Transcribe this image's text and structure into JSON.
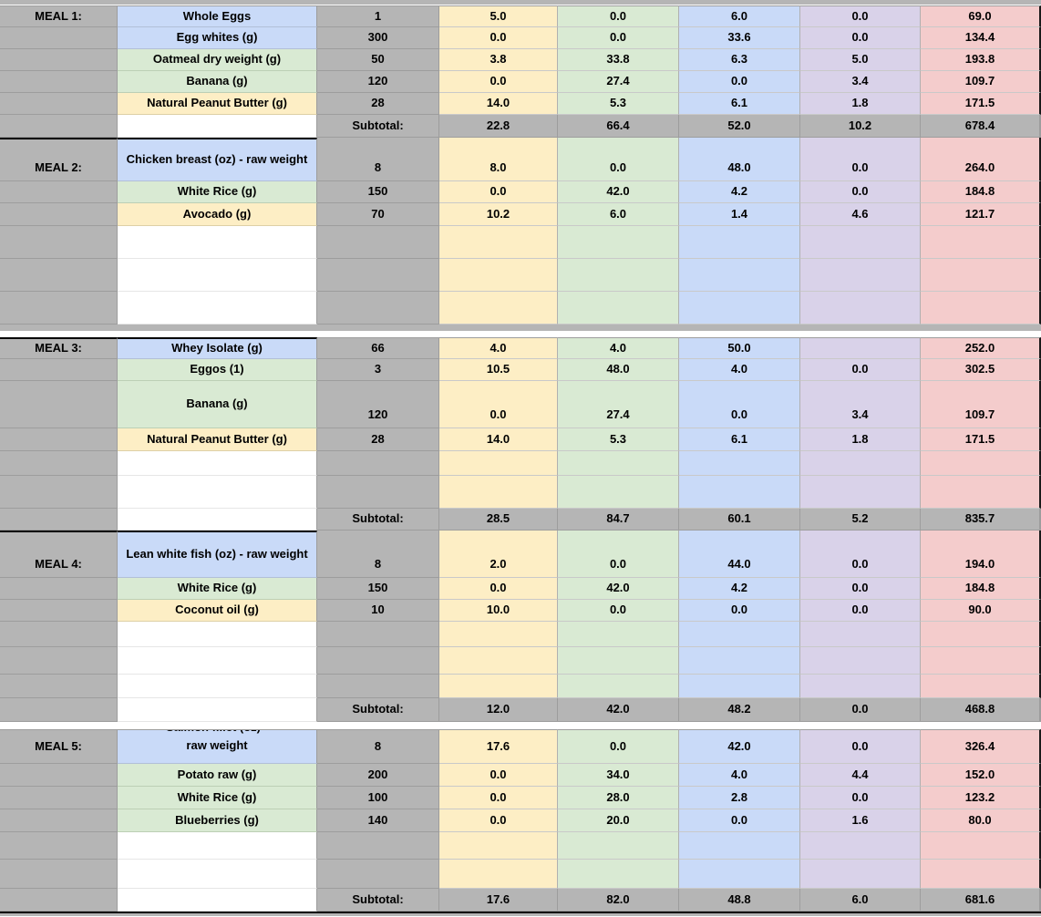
{
  "app": {
    "description_strip_top": "partially cut-off header row",
    "bottom_strip": "top edge of next cut-off row"
  },
  "colors": {
    "gray_cell": "#b5b5b5",
    "blue_cell": "#c9daf8",
    "green_cell": "#d9ead3",
    "cream_cell": "#fdeec5",
    "purple_cell": "#d9d2e9",
    "pink_cell": "#f4cccc",
    "grid_line": "#9d9d9d",
    "section_border": "#000000"
  },
  "value_column_tints": [
    "cream",
    "green",
    "blue",
    "purple",
    "pink"
  ],
  "sections": [
    {
      "separator_after": "strip-gap",
      "rows": [
        {
          "type": "item",
          "meal": "MEAL 1:",
          "label": "Whole Eggs",
          "bg": "blue",
          "qty": "1",
          "values": [
            "5.0",
            "0.0",
            "6.0",
            "0.0",
            "69.0"
          ],
          "h": 24
        },
        {
          "type": "item",
          "label": "Egg whites (g)",
          "bg": "blue",
          "qty": "300",
          "values": [
            "0.0",
            "0.0",
            "33.6",
            "0.0",
            "134.4"
          ],
          "h": 24
        },
        {
          "type": "item",
          "label": "Oatmeal dry weight (g)",
          "bg": "green",
          "qty": "50",
          "values": [
            "3.8",
            "33.8",
            "6.3",
            "5.0",
            "193.8"
          ],
          "h": 24
        },
        {
          "type": "item",
          "label": "Banana (g)",
          "bg": "green",
          "qty": "120",
          "values": [
            "0.0",
            "27.4",
            "0.0",
            "3.4",
            "109.7"
          ],
          "h": 24
        },
        {
          "type": "item",
          "label": "Natural Peanut Butter (g)",
          "bg": "cream",
          "qty": "28",
          "values": [
            "14.0",
            "5.3",
            "6.1",
            "1.8",
            "171.5"
          ],
          "h": 24
        },
        {
          "type": "subtotal",
          "qty_label": "Subtotal:",
          "values": [
            "22.8",
            "66.4",
            "52.0",
            "10.2",
            "678.4"
          ],
          "h": 25
        },
        {
          "type": "item",
          "meal": "MEAL 2:",
          "label": "Chicken breast (oz) - raw weight",
          "bg": "blue",
          "qty": "8",
          "values": [
            "8.0",
            "0.0",
            "48.0",
            "0.0",
            "264.0"
          ],
          "h": 48,
          "thick": true
        },
        {
          "type": "item",
          "label": "White Rice  (g)",
          "bg": "green",
          "qty": "150",
          "values": [
            "0.0",
            "42.0",
            "4.2",
            "0.0",
            "184.8"
          ],
          "h": 24
        },
        {
          "type": "item",
          "label": "Avocado (g)",
          "bg": "cream",
          "qty": "70",
          "values": [
            "10.2",
            "6.0",
            "1.4",
            "4.6",
            "121.7"
          ],
          "h": 25
        },
        {
          "type": "empty",
          "h": 36
        },
        {
          "type": "empty",
          "h": 36
        },
        {
          "type": "empty",
          "h": 36
        }
      ]
    },
    {
      "separator_after": "gap",
      "rows": [
        {
          "type": "item",
          "meal": "MEAL 3:",
          "label": "Whey Isolate (g)",
          "bg": "blue",
          "qty": "66",
          "values": [
            "4.0",
            "4.0",
            "50.0",
            "",
            "252.0"
          ],
          "h": 24,
          "thick": true
        },
        {
          "type": "item",
          "label": "Eggos (1)",
          "bg": "green",
          "qty": "3",
          "values": [
            "10.5",
            "48.0",
            "4.0",
            "0.0",
            "302.5"
          ],
          "h": 24
        },
        {
          "type": "item",
          "label": "Banana (g)",
          "bg": "green",
          "qty": "120",
          "values": [
            "0.0",
            "27.4",
            "0.0",
            "3.4",
            "109.7"
          ],
          "h": 52
        },
        {
          "type": "item",
          "label": "Natural Peanut Butter (g)",
          "bg": "cream",
          "qty": "28",
          "values": [
            "14.0",
            "5.3",
            "6.1",
            "1.8",
            "171.5"
          ],
          "h": 25
        },
        {
          "type": "empty",
          "h": 27
        },
        {
          "type": "empty",
          "h": 36
        },
        {
          "type": "subtotal",
          "qty_label": "Subtotal:",
          "values": [
            "28.5",
            "84.7",
            "60.1",
            "5.2",
            "835.7"
          ],
          "h": 24
        },
        {
          "type": "item",
          "meal": "MEAL 4:",
          "label": "Lean white fish (oz) - raw weight",
          "bg": "blue",
          "qty": "8",
          "values": [
            "2.0",
            "0.0",
            "44.0",
            "0.0",
            "194.0"
          ],
          "h": 52,
          "thick": true
        },
        {
          "type": "item",
          "label": "White Rice  (g)",
          "bg": "green",
          "qty": "150",
          "values": [
            "0.0",
            "42.0",
            "4.2",
            "0.0",
            "184.8"
          ],
          "h": 24
        },
        {
          "type": "item",
          "label": "Coconut oil (g)",
          "bg": "cream",
          "qty": "10",
          "values": [
            "10.0",
            "0.0",
            "0.0",
            "0.0",
            "90.0"
          ],
          "h": 24
        },
        {
          "type": "empty",
          "h": 28
        },
        {
          "type": "empty",
          "h": 30
        },
        {
          "type": "empty",
          "h": 26
        },
        {
          "type": "subtotal",
          "qty_label": "Subtotal:",
          "values": [
            "12.0",
            "42.0",
            "48.2",
            "0.0",
            "468.8"
          ],
          "h": 26
        }
      ]
    },
    {
      "separator_after": "end-strip",
      "rows": [
        {
          "type": "item",
          "meal": "MEAL 5:",
          "label": "raw weight",
          "label_line1_partially_visible": "Salmon fillet (oz) -",
          "bg": "blue",
          "qty": "8",
          "values": [
            "17.6",
            "0.0",
            "42.0",
            "0.0",
            "326.4"
          ],
          "h": 38,
          "clip": true
        },
        {
          "type": "item",
          "label": "Potato raw (g)",
          "bg": "green",
          "qty": "200",
          "values": [
            "0.0",
            "34.0",
            "4.0",
            "4.4",
            "152.0"
          ],
          "h": 25
        },
        {
          "type": "item",
          "label": "White Rice  (g)",
          "bg": "green",
          "qty": "100",
          "values": [
            "0.0",
            "28.0",
            "2.8",
            "0.0",
            "123.2"
          ],
          "h": 25
        },
        {
          "type": "item",
          "label": "Blueberries (g)",
          "bg": "green",
          "qty": "140",
          "values": [
            "0.0",
            "20.0",
            "0.0",
            "1.6",
            "80.0"
          ],
          "h": 25
        },
        {
          "type": "empty",
          "h": 30
        },
        {
          "type": "empty",
          "h": 32
        },
        {
          "type": "subtotal",
          "qty_label": "Subtotal:",
          "values": [
            "17.6",
            "82.0",
            "48.8",
            "6.0",
            "681.6"
          ],
          "h": 25
        }
      ]
    }
  ]
}
